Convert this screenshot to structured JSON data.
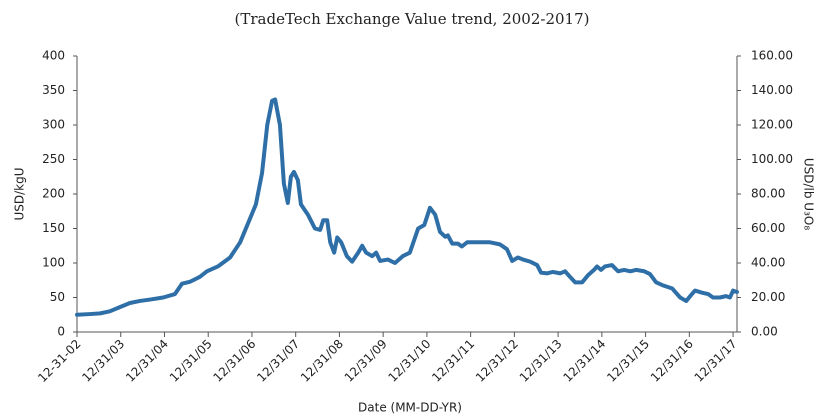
{
  "chart_data": {
    "type": "line",
    "title": "(TradeTech Exchange Value trend, 2002-2017)",
    "x_label": "Date (MM-DD-YR)",
    "y_label": "USD/kgU",
    "y2_label": "USD/lb U₃O₈",
    "x": [
      2003.0,
      2003.3,
      2003.53,
      2003.75,
      2003.98,
      2004.21,
      2004.44,
      2004.67,
      2004.97,
      2005.24,
      2005.4,
      2005.59,
      2005.81,
      2005.97,
      2006.22,
      2006.5,
      2006.73,
      2006.96,
      2007.09,
      2007.23,
      2007.35,
      2007.46,
      2007.53,
      2007.64,
      2007.73,
      2007.82,
      2007.89,
      2007.96,
      2008.05,
      2008.12,
      2008.28,
      2008.44,
      2008.56,
      2008.63,
      2008.72,
      2008.79,
      2008.88,
      2008.95,
      2009.04,
      2009.17,
      2009.29,
      2009.43,
      2009.52,
      2009.61,
      2009.75,
      2009.84,
      2009.93,
      2010.11,
      2010.27,
      2010.45,
      2010.61,
      2010.8,
      2010.94,
      2011.07,
      2011.19,
      2011.3,
      2011.42,
      2011.48,
      2011.58,
      2011.71,
      2011.8,
      2011.92,
      2012.22,
      2012.44,
      2012.67,
      2012.83,
      2012.95,
      2013.08,
      2013.2,
      2013.36,
      2013.52,
      2013.61,
      2013.75,
      2013.88,
      2014.05,
      2014.16,
      2014.27,
      2014.39,
      2014.55,
      2014.68,
      2014.82,
      2014.89,
      2014.98,
      2015.07,
      2015.23,
      2015.37,
      2015.51,
      2015.65,
      2015.78,
      2015.97,
      2016.1,
      2016.24,
      2016.38,
      2016.61,
      2016.79,
      2016.93,
      2017.02,
      2017.13,
      2017.29,
      2017.43,
      2017.54,
      2017.7,
      2017.84,
      2017.93,
      2018.0,
      2018.09
    ],
    "series": [
      {
        "name": "TradeTech Exchange Value",
        "color": "#2f6fa7",
        "values": [
          25,
          26,
          27,
          30,
          36,
          42,
          45,
          47,
          50,
          55,
          70,
          73,
          80,
          88,
          95,
          108,
          130,
          165,
          185,
          230,
          300,
          335,
          337,
          300,
          215,
          187,
          225,
          232,
          220,
          185,
          170,
          150,
          148,
          162,
          162,
          130,
          115,
          137,
          130,
          110,
          102,
          115,
          125,
          115,
          110,
          115,
          103,
          105,
          100,
          110,
          115,
          150,
          155,
          180,
          170,
          145,
          138,
          140,
          128,
          128,
          124,
          130,
          130,
          130,
          127,
          120,
          103,
          108,
          105,
          102,
          97,
          86,
          85,
          87,
          85,
          88,
          80,
          72,
          72,
          82,
          90,
          95,
          90,
          95,
          97,
          88,
          90,
          88,
          90,
          88,
          84,
          72,
          68,
          63,
          50,
          45,
          52,
          60,
          57,
          55,
          50,
          50,
          52,
          50,
          60,
          58
        ]
      }
    ],
    "xlim": [
      2003.0,
      2018.09
    ],
    "xticks": [
      {
        "value": 2003,
        "label": "12-31-02"
      },
      {
        "value": 2004,
        "label": "12/31/03"
      },
      {
        "value": 2005,
        "label": "12/31/04"
      },
      {
        "value": 2006,
        "label": "12/31/05"
      },
      {
        "value": 2007,
        "label": "12/31/06"
      },
      {
        "value": 2008,
        "label": "12/31/07"
      },
      {
        "value": 2009,
        "label": "12/31/08"
      },
      {
        "value": 2010,
        "label": "12/31/09"
      },
      {
        "value": 2011,
        "label": "12/31/10"
      },
      {
        "value": 2012,
        "label": "12/31/11"
      },
      {
        "value": 2013,
        "label": "12/31/12"
      },
      {
        "value": 2014,
        "label": "12/31/13"
      },
      {
        "value": 2015,
        "label": "12/31/14"
      },
      {
        "value": 2016,
        "label": "12/31/15"
      },
      {
        "value": 2017,
        "label": "12/31/16"
      },
      {
        "value": 2018,
        "label": "12/31/17"
      }
    ],
    "ylim": [
      0,
      400
    ],
    "yticks": [
      0,
      50,
      100,
      150,
      200,
      250,
      300,
      350,
      400
    ],
    "y2lim": [
      0,
      160
    ],
    "y2ticks": [
      {
        "value": 0,
        "label": "0.00"
      },
      {
        "value": 20,
        "label": "20.00"
      },
      {
        "value": 40,
        "label": "40.00"
      },
      {
        "value": 60,
        "label": "60.00"
      },
      {
        "value": 80,
        "label": "80.00"
      },
      {
        "value": 100,
        "label": "100.00"
      },
      {
        "value": 120,
        "label": "120.00"
      },
      {
        "value": 140,
        "label": "140.00"
      },
      {
        "value": 160,
        "label": "160.00"
      }
    ],
    "grid": false
  }
}
